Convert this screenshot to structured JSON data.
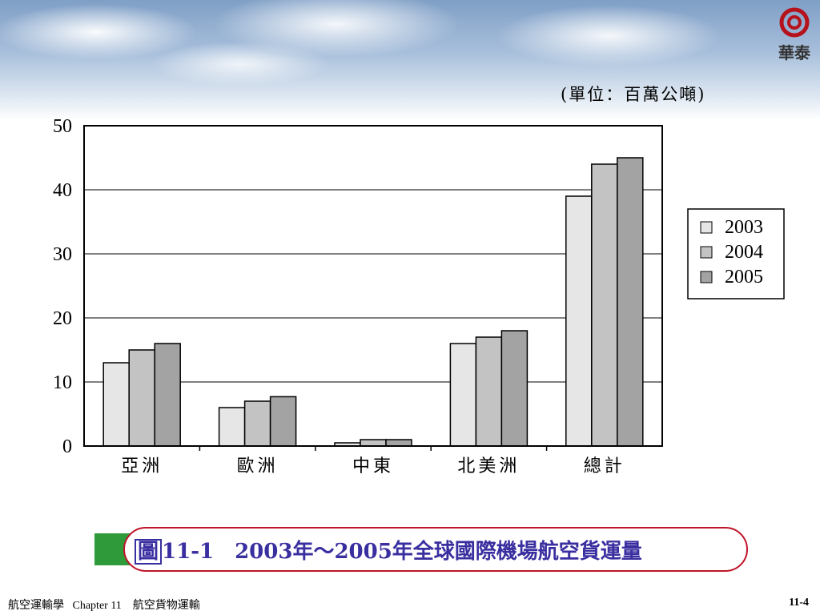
{
  "logo_text": "華泰",
  "unit_label": "(單位：百萬公噸)",
  "caption": {
    "fig_label": "圖",
    "text": "11-1　2003年～2005年全球國際機場航空貨運量"
  },
  "footer": {
    "left": "航空運輸學   Chapter 11    航空貨物運輸",
    "page": "11-4"
  },
  "colors": {
    "logo": "#b5121b",
    "caption_border": "#c0142a",
    "caption_text": "#3a2fa0",
    "caption_tab": "#2f9a3a"
  },
  "chart_data": {
    "type": "bar",
    "categories": [
      "亞洲",
      "歐洲",
      "中東",
      "北美洲",
      "總計"
    ],
    "series": [
      {
        "name": "2003",
        "color": "#e6e6e6",
        "values": [
          13,
          6,
          0.5,
          16,
          39
        ]
      },
      {
        "name": "2004",
        "color": "#c3c3c3",
        "values": [
          15,
          7,
          1,
          17,
          44
        ]
      },
      {
        "name": "2005",
        "color": "#a3a3a3",
        "values": [
          16,
          7.7,
          1,
          18,
          45
        ]
      }
    ],
    "y_ticks": [
      "0",
      "10",
      "20",
      "30",
      "40",
      "50"
    ],
    "ylim": [
      0,
      50
    ],
    "grid": true,
    "legend": "right"
  }
}
